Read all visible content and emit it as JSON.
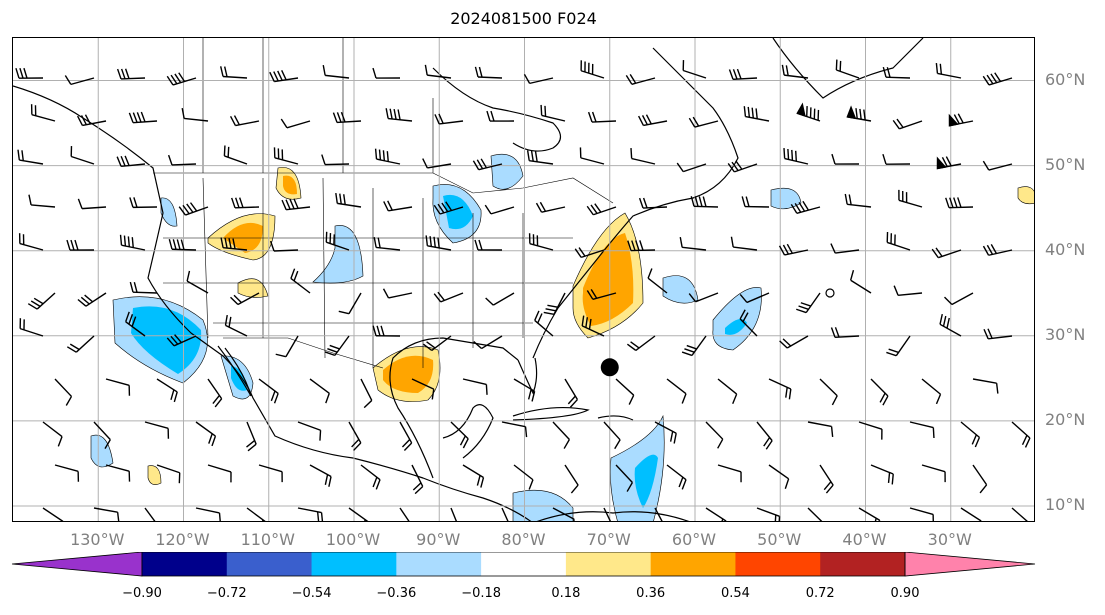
{
  "title": "2024081500 F024",
  "map": {
    "lon_range": [
      -140,
      -20
    ],
    "lat_range": [
      8,
      65
    ],
    "lon_ticks": [
      "130°W",
      "120°W",
      "110°W",
      "100°W",
      "90°W",
      "80°W",
      "70°W",
      "60°W",
      "50°W",
      "40°W",
      "30°W"
    ],
    "lat_ticks": [
      "60°N",
      "50°N",
      "40°N",
      "30°N",
      "20°N",
      "10°N"
    ],
    "gridlines": true,
    "storm_marker": {
      "lon": -70.0,
      "lat": 26.3
    }
  },
  "colorbar": {
    "labels": [
      "−0.90",
      "−0.72",
      "−0.54",
      "−0.36",
      "−0.18",
      "0.18",
      "0.36",
      "0.54",
      "0.72",
      "0.90"
    ],
    "colors": [
      "#9932cc",
      "#00008b",
      "#3a5fcd",
      "#00bfff",
      "#aadcff",
      "#ffffff",
      "#ffe88a",
      "#ffa500",
      "#ff4500",
      "#b22222",
      "#ff82ab"
    ],
    "extend": "both"
  },
  "colors": {
    "neg_light": "#aadcff",
    "neg_mid": "#00bfff",
    "pos_light": "#ffe88a",
    "pos_mid": "#ffa500",
    "grid": "#b0b0b0",
    "coast": "#000000"
  }
}
